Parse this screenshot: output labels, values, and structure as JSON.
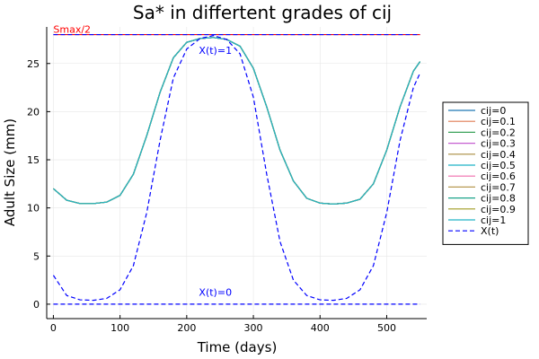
{
  "chart_data": {
    "type": "line",
    "title": "Sa* in differtent grades of cij",
    "xlabel": "Time (days)",
    "ylabel": "Adult Size (mm)",
    "xlim": [
      -10,
      560
    ],
    "ylim": [
      -1.5,
      28.8
    ],
    "xticks": [
      0,
      100,
      200,
      300,
      400,
      500
    ],
    "yticks": [
      0,
      5,
      10,
      15,
      20,
      25
    ],
    "grid": true,
    "legend_position": "right",
    "series": [
      {
        "name": "cij=0",
        "color": "#1f77b4"
      },
      {
        "name": "cij=0.1",
        "color": "#e07b54"
      },
      {
        "name": "cij=0.2",
        "color": "#3aa35a"
      },
      {
        "name": "cij=0.3",
        "color": "#c55fd1"
      },
      {
        "name": "cij=0.4",
        "color": "#a98c3f"
      },
      {
        "name": "cij=0.5",
        "color": "#1fb2c7"
      },
      {
        "name": "cij=0.6",
        "color": "#ef6bab"
      },
      {
        "name": "cij=0.7",
        "color": "#b79a52"
      },
      {
        "name": "cij=0.8",
        "color": "#1aa38a"
      },
      {
        "name": "cij=0.9",
        "color": "#9f9a20"
      },
      {
        "name": "cij=1",
        "color": "#22b5c8"
      }
    ],
    "curve_x": [
      0,
      20,
      40,
      60,
      80,
      100,
      120,
      140,
      160,
      180,
      200,
      220,
      240,
      260,
      280,
      300,
      320,
      340,
      360,
      380,
      400,
      420,
      440,
      460,
      480,
      500,
      520,
      540,
      550
    ],
    "curve_y": [
      12.0,
      10.8,
      10.45,
      10.45,
      10.6,
      11.3,
      13.5,
      17.5,
      22.0,
      25.6,
      27.2,
      27.6,
      27.7,
      27.5,
      26.8,
      24.5,
      20.5,
      16.0,
      12.8,
      11.0,
      10.5,
      10.4,
      10.5,
      10.9,
      12.5,
      16.0,
      20.5,
      24.2,
      25.2
    ],
    "xt_series": {
      "name": "X(t)",
      "color": "#0000ff",
      "style": "dashed",
      "x": [
        0,
        20,
        40,
        60,
        80,
        100,
        120,
        140,
        160,
        180,
        200,
        220,
        240,
        260,
        280,
        300,
        320,
        340,
        360,
        380,
        400,
        420,
        440,
        460,
        480,
        500,
        520,
        540,
        550
      ],
      "y": [
        3.0,
        0.9,
        0.45,
        0.4,
        0.6,
        1.5,
        4.0,
        9.5,
        17.0,
        23.5,
        26.5,
        27.6,
        27.9,
        27.5,
        26.0,
        21.5,
        13.5,
        6.5,
        2.5,
        0.9,
        0.45,
        0.4,
        0.6,
        1.5,
        4.0,
        9.5,
        17.0,
        22.5,
        24.0
      ]
    },
    "reference_lines": [
      {
        "y": 28.0,
        "label": "Smax/2",
        "color": "#ff0000"
      },
      {
        "y": 28.0,
        "color": "#0000ff",
        "style": "dashed"
      },
      {
        "y": 0.0,
        "color": "#0000ff",
        "style": "dashed"
      }
    ],
    "annotations": [
      {
        "text": "X(t)=1",
        "x": 243,
        "y": 26.0,
        "color": "#0000ff"
      },
      {
        "text": "X(t)=0",
        "x": 243,
        "y": 0.9,
        "color": "#0000ff"
      }
    ]
  }
}
